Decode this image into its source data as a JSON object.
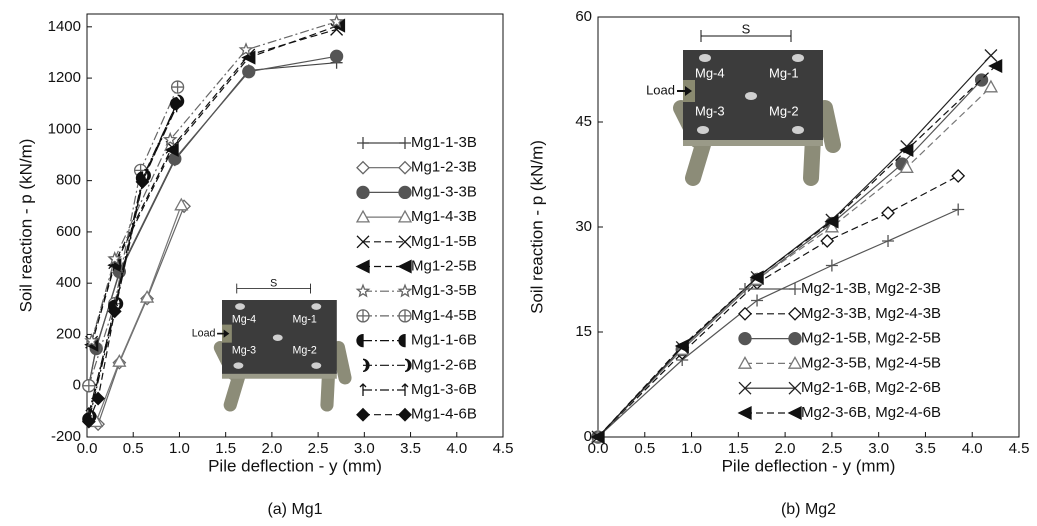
{
  "chart_data": [
    {
      "type": "line",
      "caption": "(a) Mg1",
      "xlabel": "Pile deflection - y (mm)",
      "ylabel": "Soil reaction - p (kN/m)",
      "xlim": [
        0,
        4.5
      ],
      "ylim": [
        -200,
        1450
      ],
      "xticks": [
        {
          "value": 0,
          "label": "0.0"
        },
        0.5,
        {
          "value": 1,
          "label": "1.0"
        },
        1.5,
        {
          "value": 2,
          "label": "2.0"
        },
        2.5,
        {
          "value": 3,
          "label": "3.0"
        },
        3.5,
        {
          "value": 4,
          "label": "4.0"
        },
        4.5
      ],
      "yticks": [
        -200,
        0,
        200,
        400,
        600,
        800,
        1000,
        1200,
        1400
      ],
      "legend": "lower right",
      "inset": {
        "spacing_label": "S",
        "load_label": "Load",
        "pile_labels": [
          "Mg-4",
          "Mg-1",
          "Mg-3",
          "Mg-2"
        ]
      },
      "series": [
        {
          "name": "Mg1-1-3B",
          "color": "#444444",
          "marker": "plus",
          "dash": "solid",
          "x": [
            0.02,
            0.1,
            0.35,
            0.95,
            1.75,
            2.7
          ],
          "values": [
            0,
            150,
            440,
            880,
            1230,
            1260
          ]
        },
        {
          "name": "Mg1-2-3B",
          "color": "#666666",
          "marker": "diamond",
          "dash": "solid",
          "x": [
            0.12,
            0.35,
            0.65,
            1.05
          ],
          "values": [
            -150,
            90,
            340,
            700
          ]
        },
        {
          "name": "Mg1-3-3B",
          "color": "#555555",
          "marker": "circle",
          "dash": "solid",
          "x": [
            0.02,
            0.1,
            0.35,
            0.95,
            1.75,
            2.7
          ],
          "values": [
            0,
            145,
            445,
            885,
            1225,
            1285
          ]
        },
        {
          "name": "Mg1-4-3B",
          "color": "#777777",
          "marker": "triangle",
          "dash": "solid",
          "x": [
            0.1,
            0.35,
            0.65,
            1.02
          ],
          "values": [
            -140,
            95,
            345,
            705
          ]
        },
        {
          "name": "Mg1-1-5B",
          "color": "#111111",
          "marker": "x",
          "dash": "dashed",
          "x": [
            0.05,
            0.3,
            0.92,
            1.75,
            2.7
          ],
          "values": [
            170,
            480,
            930,
            1290,
            1390
          ]
        },
        {
          "name": "Mg1-2-5B",
          "color": "#111111",
          "marker": "larrow",
          "dash": "dashed",
          "x": [
            0.05,
            0.3,
            0.92,
            1.75,
            2.72
          ],
          "values": [
            160,
            470,
            920,
            1280,
            1405
          ]
        },
        {
          "name": "Mg1-3-5B",
          "color": "#666666",
          "marker": "star",
          "dash": "dashdot",
          "x": [
            0.05,
            0.3,
            0.9,
            1.72,
            2.7
          ],
          "values": [
            175,
            495,
            960,
            1310,
            1420
          ]
        },
        {
          "name": "Mg1-4-5B",
          "color": "#666666",
          "marker": "oplus",
          "dash": "dashdot",
          "x": [
            0.02,
            0.3,
            0.58,
            0.98
          ],
          "values": [
            0,
            320,
            840,
            1165
          ]
        },
        {
          "name": "Mg1-1-6B",
          "color": "#111111",
          "marker": "halfcircle",
          "dash": "dashdot",
          "x": [
            0.02,
            0.3,
            0.6,
            0.97
          ],
          "values": [
            -130,
            310,
            810,
            1100
          ]
        },
        {
          "name": "Mg1-2-6B",
          "color": "#111111",
          "marker": "moon",
          "dash": "dashdot",
          "x": [
            0.03,
            0.32,
            0.62,
            0.98
          ],
          "values": [
            -120,
            320,
            820,
            1110
          ]
        },
        {
          "name": "Mg1-3-6B",
          "color": "#111111",
          "marker": "arrow",
          "dash": "dashdot",
          "x": [
            0.02,
            0.3,
            0.6,
            0.97
          ],
          "values": [
            -110,
            300,
            800,
            1090
          ]
        },
        {
          "name": "Mg1-4-6B",
          "color": "#111111",
          "marker": "fdiamond",
          "dash": "dashed",
          "x": [
            0.02,
            0.12,
            0.3,
            0.6,
            0.97
          ],
          "values": [
            -140,
            -50,
            290,
            795,
            1100
          ]
        }
      ]
    },
    {
      "type": "line",
      "caption": "(b) Mg2",
      "xlabel": "Pile deflection - y (mm)",
      "ylabel": "Soil reaction - p (kN/m)",
      "xlim": [
        0,
        4.5
      ],
      "ylim": [
        0,
        60
      ],
      "xticks": [
        {
          "value": 0,
          "label": "0.0"
        },
        0.5,
        {
          "value": 1,
          "label": "1.0"
        },
        1.5,
        {
          "value": 2,
          "label": "2.0"
        },
        2.5,
        {
          "value": 3,
          "label": "3.0"
        },
        3.5,
        {
          "value": 4,
          "label": "4.0"
        },
        4.5
      ],
      "yticks": [
        0,
        15,
        30,
        45,
        60
      ],
      "legend": "lower right",
      "inset": {
        "spacing_label": "S",
        "load_label": "Load",
        "pile_labels": [
          "Mg-4",
          "Mg-1",
          "Mg-3",
          "Mg-2"
        ]
      },
      "series": [
        {
          "name": "Mg2-1-3B, Mg2-2-3B",
          "color": "#555555",
          "marker": "plus",
          "dash": "solid",
          "x": [
            0,
            0.9,
            1.7,
            2.5,
            3.1,
            3.85
          ],
          "values": [
            0,
            11,
            19.5,
            24.5,
            28,
            32.5
          ]
        },
        {
          "name": "Mg2-3-3B, Mg2-4-3B",
          "color": "#111111",
          "marker": "diamond",
          "dash": "dashed",
          "x": [
            0,
            0.9,
            1.7,
            2.45,
            3.1,
            3.85
          ],
          "values": [
            0,
            12,
            22,
            28,
            32,
            37.3
          ]
        },
        {
          "name": "Mg2-1-5B, Mg2-2-5B",
          "color": "#555555",
          "marker": "circle",
          "dash": "solid",
          "x": [
            0,
            0.9,
            1.7,
            2.5,
            3.25,
            4.1
          ],
          "values": [
            0,
            12.5,
            22.5,
            30.5,
            39,
            51
          ]
        },
        {
          "name": "Mg2-3-5B, Mg2-4-5B",
          "color": "#777777",
          "marker": "triangle",
          "dash": "dashed",
          "x": [
            0,
            0.9,
            1.7,
            2.5,
            3.3,
            4.2
          ],
          "values": [
            0,
            12.5,
            22.5,
            30,
            38.5,
            50
          ]
        },
        {
          "name": "Mg2-1-6B, Mg2-2-6B",
          "color": "#222222",
          "marker": "x",
          "dash": "solid",
          "x": [
            0,
            0.9,
            1.7,
            2.5,
            3.3,
            4.2
          ],
          "values": [
            0,
            12.8,
            22.8,
            31,
            41.5,
            54.5
          ]
        },
        {
          "name": "Mg2-3-6B, Mg2-4-6B",
          "color": "#111111",
          "marker": "larrow",
          "dash": "dashed",
          "x": [
            0,
            0.9,
            1.7,
            2.5,
            3.3,
            4.25
          ],
          "values": [
            0,
            13,
            22.8,
            30.8,
            41,
            53
          ]
        }
      ]
    }
  ]
}
